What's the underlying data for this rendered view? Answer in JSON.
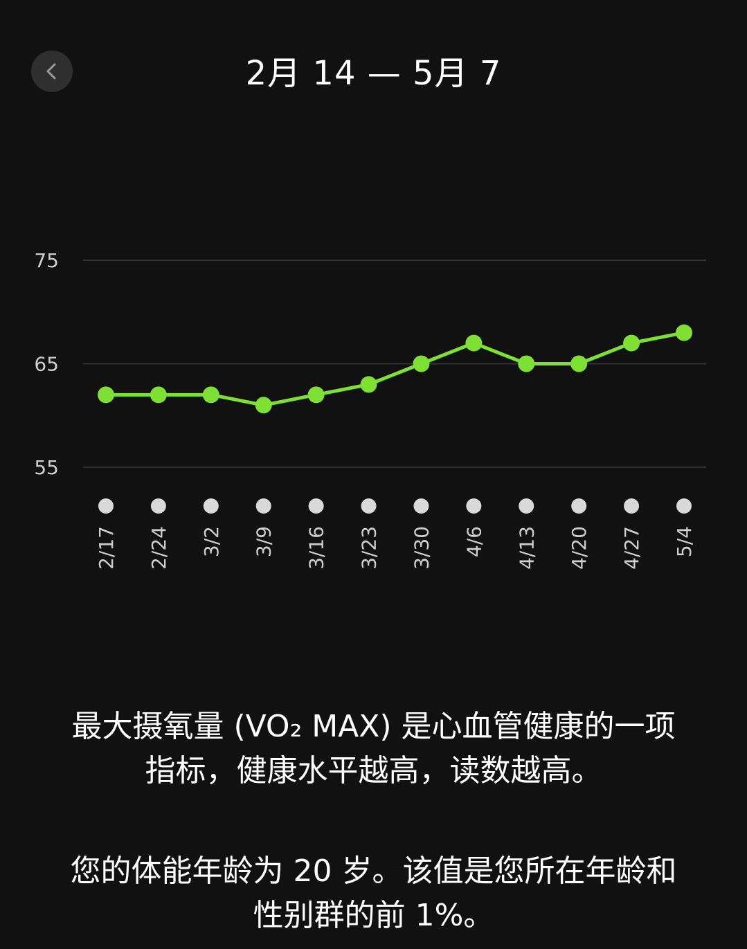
{
  "header": {
    "title": "2月 14 — 5月 7",
    "back_icon": "chevron-left-icon"
  },
  "colors": {
    "background": "#111111",
    "line": "#7ee032",
    "marker": "#d9d9d9",
    "grid": "#333333",
    "text": "#ffffff"
  },
  "chart_data": {
    "type": "line",
    "x": [
      "2/17",
      "2/24",
      "3/2",
      "3/9",
      "3/16",
      "3/23",
      "3/30",
      "4/6",
      "4/13",
      "4/20",
      "4/27",
      "5/4"
    ],
    "series": [
      {
        "values": [
          62,
          62,
          62,
          61,
          62,
          63,
          65,
          67,
          65,
          65,
          67,
          68
        ]
      }
    ],
    "y_ticks": [
      55,
      65,
      75
    ],
    "ylim": [
      55,
      75
    ],
    "grid": true,
    "x_label_rotation": "vertical",
    "x_markers": true
  },
  "description": {
    "line1": "最大摄氧量 (VO₂ MAX) 是心血管健康的一项",
    "line2": "指标，健康水平越高，读数越高。",
    "line3": "您的体能年龄为 20 岁。该值是您所在年龄和",
    "line4": "性别群的前 1%。"
  }
}
